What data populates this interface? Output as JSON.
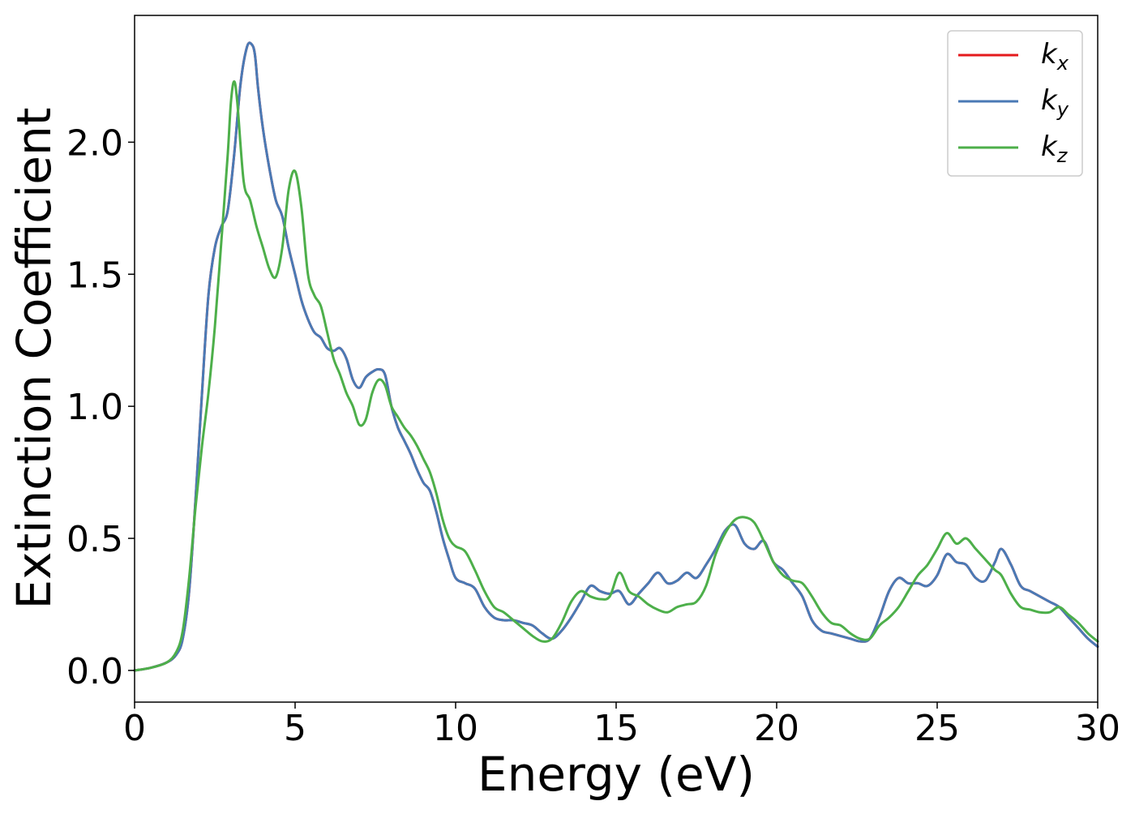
{
  "chart_data": {
    "type": "line",
    "xlabel": "Energy (eV)",
    "ylabel": "Extinction Coefficient",
    "xlim": [
      0,
      30
    ],
    "ylim": [
      -0.12,
      2.48
    ],
    "xticks": [
      "0",
      "5",
      "10",
      "15",
      "20",
      "25",
      "30"
    ],
    "yticks": [
      "0.0",
      "0.5",
      "1.0",
      "1.5",
      "2.0"
    ],
    "grid": false,
    "legend_placement": "top-right",
    "series": [
      {
        "name": "k_x",
        "label_base": "k",
        "label_sub": "x",
        "color": "#e41a1c",
        "x": [
          0,
          0.5,
          1.0,
          1.3,
          1.5,
          1.7,
          1.9,
          2.1,
          2.3,
          2.5,
          2.7,
          2.9,
          3.1,
          3.3,
          3.5,
          3.65,
          3.75,
          3.85,
          4.0,
          4.2,
          4.4,
          4.6,
          4.8,
          5.0,
          5.2,
          5.4,
          5.6,
          5.8,
          6.0,
          6.2,
          6.4,
          6.6,
          6.8,
          7.0,
          7.2,
          7.4,
          7.6,
          7.8,
          8.0,
          8.2,
          8.4,
          8.6,
          8.8,
          9.0,
          9.2,
          9.4,
          9.6,
          9.8,
          10.0,
          10.3,
          10.6,
          10.9,
          11.2,
          11.5,
          11.8,
          12.1,
          12.4,
          12.7,
          13.0,
          13.3,
          13.6,
          13.9,
          14.2,
          14.5,
          14.8,
          15.1,
          15.4,
          15.7,
          16.0,
          16.3,
          16.6,
          16.9,
          17.2,
          17.5,
          17.8,
          18.1,
          18.4,
          18.7,
          19.0,
          19.3,
          19.6,
          19.9,
          20.2,
          20.5,
          20.8,
          21.1,
          21.4,
          21.7,
          22.0,
          22.3,
          22.6,
          22.9,
          23.2,
          23.5,
          23.8,
          24.1,
          24.4,
          24.7,
          25.0,
          25.3,
          25.6,
          25.9,
          26.2,
          26.5,
          26.8,
          27.0,
          27.3,
          27.6,
          27.9,
          28.2,
          28.5,
          28.8,
          29.1,
          29.4,
          29.7,
          30.0
        ],
        "values": [
          0.0,
          0.01,
          0.03,
          0.06,
          0.12,
          0.3,
          0.65,
          1.05,
          1.42,
          1.6,
          1.68,
          1.74,
          1.95,
          2.22,
          2.36,
          2.37,
          2.33,
          2.2,
          2.05,
          1.9,
          1.78,
          1.72,
          1.6,
          1.5,
          1.4,
          1.33,
          1.28,
          1.26,
          1.22,
          1.21,
          1.22,
          1.18,
          1.1,
          1.07,
          1.11,
          1.13,
          1.14,
          1.12,
          1.0,
          0.92,
          0.87,
          0.82,
          0.76,
          0.71,
          0.68,
          0.6,
          0.5,
          0.42,
          0.35,
          0.33,
          0.31,
          0.24,
          0.2,
          0.19,
          0.19,
          0.18,
          0.17,
          0.14,
          0.12,
          0.15,
          0.2,
          0.26,
          0.32,
          0.3,
          0.29,
          0.3,
          0.25,
          0.29,
          0.33,
          0.37,
          0.33,
          0.34,
          0.37,
          0.35,
          0.4,
          0.46,
          0.53,
          0.55,
          0.48,
          0.46,
          0.49,
          0.41,
          0.38,
          0.33,
          0.28,
          0.19,
          0.15,
          0.14,
          0.13,
          0.12,
          0.11,
          0.12,
          0.2,
          0.3,
          0.35,
          0.33,
          0.33,
          0.32,
          0.36,
          0.44,
          0.41,
          0.4,
          0.35,
          0.34,
          0.41,
          0.46,
          0.4,
          0.32,
          0.3,
          0.28,
          0.26,
          0.24,
          0.2,
          0.16,
          0.12,
          0.09
        ]
      },
      {
        "name": "k_y",
        "label_base": "k",
        "label_sub": "y",
        "color": "#4a7ab5",
        "x": [
          0,
          0.5,
          1.0,
          1.3,
          1.5,
          1.7,
          1.9,
          2.1,
          2.3,
          2.5,
          2.7,
          2.9,
          3.1,
          3.3,
          3.5,
          3.65,
          3.75,
          3.85,
          4.0,
          4.2,
          4.4,
          4.6,
          4.8,
          5.0,
          5.2,
          5.4,
          5.6,
          5.8,
          6.0,
          6.2,
          6.4,
          6.6,
          6.8,
          7.0,
          7.2,
          7.4,
          7.6,
          7.8,
          8.0,
          8.2,
          8.4,
          8.6,
          8.8,
          9.0,
          9.2,
          9.4,
          9.6,
          9.8,
          10.0,
          10.3,
          10.6,
          10.9,
          11.2,
          11.5,
          11.8,
          12.1,
          12.4,
          12.7,
          13.0,
          13.3,
          13.6,
          13.9,
          14.2,
          14.5,
          14.8,
          15.1,
          15.4,
          15.7,
          16.0,
          16.3,
          16.6,
          16.9,
          17.2,
          17.5,
          17.8,
          18.1,
          18.4,
          18.7,
          19.0,
          19.3,
          19.6,
          19.9,
          20.2,
          20.5,
          20.8,
          21.1,
          21.4,
          21.7,
          22.0,
          22.3,
          22.6,
          22.9,
          23.2,
          23.5,
          23.8,
          24.1,
          24.4,
          24.7,
          25.0,
          25.3,
          25.6,
          25.9,
          26.2,
          26.5,
          26.8,
          27.0,
          27.3,
          27.6,
          27.9,
          28.2,
          28.5,
          28.8,
          29.1,
          29.4,
          29.7,
          30.0
        ],
        "values": [
          0.0,
          0.01,
          0.03,
          0.06,
          0.12,
          0.3,
          0.65,
          1.05,
          1.42,
          1.6,
          1.68,
          1.74,
          1.95,
          2.22,
          2.36,
          2.37,
          2.33,
          2.2,
          2.05,
          1.9,
          1.78,
          1.72,
          1.6,
          1.5,
          1.4,
          1.33,
          1.28,
          1.26,
          1.22,
          1.21,
          1.22,
          1.18,
          1.1,
          1.07,
          1.11,
          1.13,
          1.14,
          1.12,
          1.0,
          0.92,
          0.87,
          0.82,
          0.76,
          0.71,
          0.68,
          0.6,
          0.5,
          0.42,
          0.35,
          0.33,
          0.31,
          0.24,
          0.2,
          0.19,
          0.19,
          0.18,
          0.17,
          0.14,
          0.12,
          0.15,
          0.2,
          0.26,
          0.32,
          0.3,
          0.29,
          0.3,
          0.25,
          0.29,
          0.33,
          0.37,
          0.33,
          0.34,
          0.37,
          0.35,
          0.4,
          0.46,
          0.53,
          0.55,
          0.48,
          0.46,
          0.49,
          0.41,
          0.38,
          0.33,
          0.28,
          0.19,
          0.15,
          0.14,
          0.13,
          0.12,
          0.11,
          0.12,
          0.2,
          0.3,
          0.35,
          0.33,
          0.33,
          0.32,
          0.36,
          0.44,
          0.41,
          0.4,
          0.35,
          0.34,
          0.41,
          0.46,
          0.4,
          0.32,
          0.3,
          0.28,
          0.26,
          0.24,
          0.2,
          0.16,
          0.12,
          0.09
        ]
      },
      {
        "name": "k_z",
        "label_base": "k",
        "label_sub": "z",
        "color": "#4daf4a",
        "x": [
          0,
          0.5,
          1.0,
          1.3,
          1.5,
          1.7,
          1.9,
          2.1,
          2.3,
          2.5,
          2.7,
          2.9,
          3.0,
          3.1,
          3.2,
          3.4,
          3.6,
          3.8,
          4.0,
          4.2,
          4.4,
          4.6,
          4.8,
          5.0,
          5.2,
          5.4,
          5.6,
          5.8,
          6.0,
          6.2,
          6.4,
          6.6,
          6.8,
          7.0,
          7.2,
          7.4,
          7.6,
          7.8,
          8.0,
          8.2,
          8.4,
          8.6,
          8.8,
          9.0,
          9.2,
          9.4,
          9.6,
          9.8,
          10.0,
          10.3,
          10.6,
          10.9,
          11.2,
          11.5,
          11.8,
          12.1,
          12.4,
          12.7,
          13.0,
          13.3,
          13.6,
          13.9,
          14.2,
          14.5,
          14.8,
          15.1,
          15.4,
          15.7,
          16.0,
          16.3,
          16.6,
          16.9,
          17.2,
          17.5,
          17.8,
          18.1,
          18.4,
          18.7,
          19.0,
          19.3,
          19.6,
          19.9,
          20.2,
          20.5,
          20.8,
          21.1,
          21.4,
          21.7,
          22.0,
          22.3,
          22.6,
          22.9,
          23.2,
          23.5,
          23.8,
          24.1,
          24.4,
          24.7,
          25.0,
          25.3,
          25.6,
          25.9,
          26.2,
          26.5,
          26.8,
          27.0,
          27.3,
          27.6,
          27.9,
          28.2,
          28.5,
          28.8,
          29.1,
          29.4,
          29.7,
          30.0
        ],
        "values": [
          0.0,
          0.01,
          0.03,
          0.07,
          0.15,
          0.35,
          0.62,
          0.85,
          1.05,
          1.3,
          1.62,
          1.95,
          2.15,
          2.23,
          2.15,
          1.85,
          1.78,
          1.68,
          1.6,
          1.52,
          1.49,
          1.6,
          1.82,
          1.89,
          1.75,
          1.5,
          1.42,
          1.38,
          1.28,
          1.18,
          1.12,
          1.05,
          1.0,
          0.93,
          0.95,
          1.05,
          1.1,
          1.08,
          1.0,
          0.96,
          0.92,
          0.89,
          0.85,
          0.8,
          0.75,
          0.67,
          0.57,
          0.5,
          0.47,
          0.45,
          0.38,
          0.3,
          0.24,
          0.22,
          0.19,
          0.16,
          0.13,
          0.11,
          0.12,
          0.18,
          0.26,
          0.3,
          0.28,
          0.27,
          0.28,
          0.37,
          0.3,
          0.28,
          0.25,
          0.23,
          0.22,
          0.24,
          0.25,
          0.26,
          0.32,
          0.44,
          0.52,
          0.57,
          0.58,
          0.56,
          0.49,
          0.41,
          0.36,
          0.34,
          0.33,
          0.28,
          0.22,
          0.18,
          0.17,
          0.14,
          0.12,
          0.12,
          0.17,
          0.2,
          0.24,
          0.3,
          0.36,
          0.4,
          0.46,
          0.52,
          0.48,
          0.5,
          0.46,
          0.42,
          0.38,
          0.36,
          0.29,
          0.24,
          0.23,
          0.22,
          0.22,
          0.24,
          0.21,
          0.18,
          0.14,
          0.11
        ]
      }
    ]
  }
}
